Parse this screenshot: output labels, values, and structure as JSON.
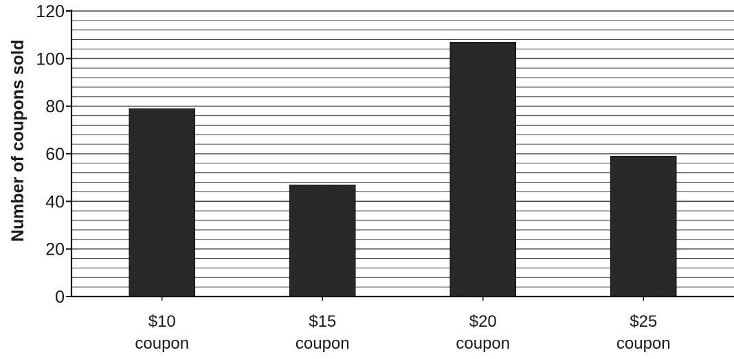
{
  "chart_data": {
    "type": "bar",
    "title": "",
    "xlabel": "",
    "ylabel": "Number of coupons sold",
    "categories": [
      [
        "$10",
        "coupon"
      ],
      [
        "$15",
        "coupon"
      ],
      [
        "$20",
        "coupon"
      ],
      [
        "$25",
        "coupon"
      ]
    ],
    "values": [
      79,
      47,
      107,
      59
    ],
    "ylim": [
      0,
      120
    ],
    "yticks": [
      0,
      20,
      40,
      60,
      80,
      100,
      120
    ],
    "minor_gridlines_per_major": 5,
    "grid": true,
    "legend": "none",
    "colors": {
      "bar": "#2f2f2f",
      "grid": "#4a4a4a",
      "axis": "#111111",
      "text": "#1a1a1a"
    }
  }
}
